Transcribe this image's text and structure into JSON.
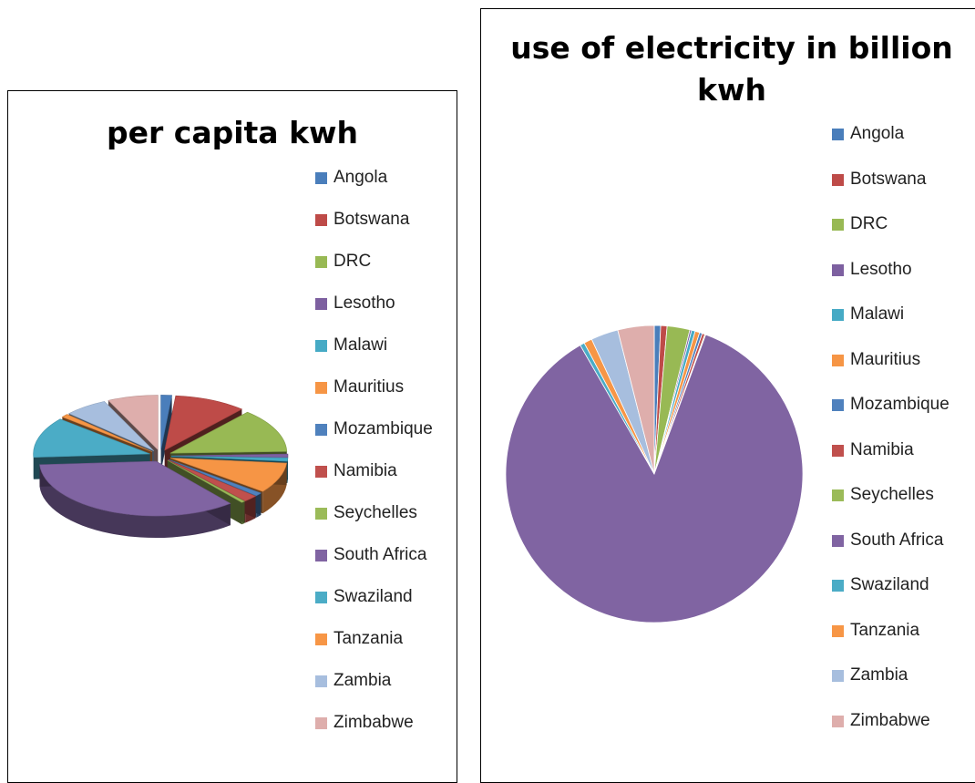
{
  "chart_data": [
    {
      "type": "pie",
      "style": "3d-exploded",
      "title": "per capita kwh",
      "legend_position": "right",
      "categories": [
        "Angola",
        "Botswana",
        "DRC",
        "Lesotho",
        "Malawi",
        "Mauritius",
        "Mozambique",
        "Namibia",
        "Seychelles",
        "South Africa",
        "Swaziland",
        "Tanzania",
        "Zambia",
        "Zimbabwe"
      ],
      "values": [
        1.5,
        10,
        13,
        1,
        1,
        9,
        1,
        2,
        0.5,
        35,
        12,
        1,
        6,
        7
      ],
      "colors": [
        "#4A7EBB",
        "#BE4B48",
        "#98B954",
        "#7D60A0",
        "#46AAC5",
        "#F69545",
        "#4F81BD",
        "#C0504D",
        "#9BBB59",
        "#8064A2",
        "#4BACC6",
        "#F79646",
        "#A7BEDE",
        "#DEAEAC"
      ]
    },
    {
      "type": "pie",
      "title": "use of electricity in billion kwh",
      "legend_position": "right",
      "categories": [
        "Angola",
        "Botswana",
        "DRC",
        "Lesotho",
        "Malawi",
        "Mauritius",
        "Mozambique",
        "Namibia",
        "Seychelles",
        "South Africa",
        "Swaziland",
        "Tanzania",
        "Zambia",
        "Zimbabwe"
      ],
      "values": [
        0.7,
        0.7,
        2.5,
        0.2,
        0.4,
        0.5,
        0.3,
        0.3,
        0.1,
        87.0,
        0.5,
        0.9,
        3.0,
        4.0
      ],
      "colors": [
        "#4A7EBB",
        "#BE4B48",
        "#98B954",
        "#7D60A0",
        "#46AAC5",
        "#F69545",
        "#4F81BD",
        "#C0504D",
        "#9BBB59",
        "#8064A2",
        "#4BACC6",
        "#F79646",
        "#A7BEDE",
        "#DEAEAC"
      ]
    }
  ]
}
